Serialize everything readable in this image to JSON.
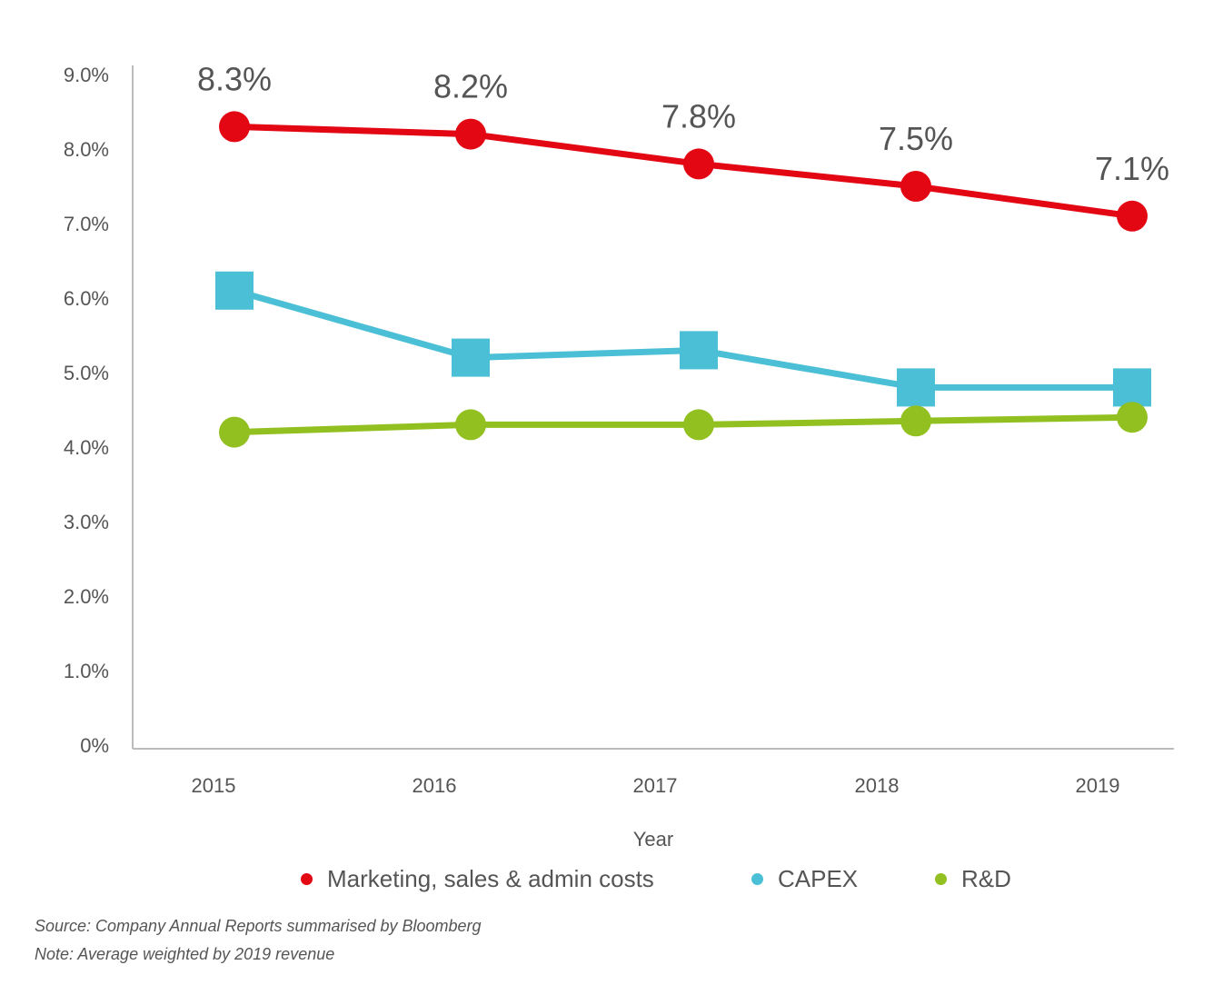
{
  "chart_data": {
    "type": "line",
    "categories": [
      "2015",
      "2016",
      "2017",
      "2018",
      "2019"
    ],
    "xlabel": "Year",
    "ylabel": "",
    "ylim": [
      0,
      9
    ],
    "yticks": [
      "0%",
      "1.0%",
      "2.0%",
      "3.0%",
      "4.0%",
      "5.0%",
      "6.0%",
      "7.0%",
      "8.0%",
      "9.0%"
    ],
    "grid": false,
    "legend_position": "bottom",
    "series": [
      {
        "name": "Marketing, sales & admin costs",
        "color": "#e30613",
        "marker": "circle",
        "values": [
          8.3,
          8.2,
          7.8,
          7.5,
          7.1
        ],
        "data_labels": [
          "8.3%",
          "8.2%",
          "7.8%",
          "7.5%",
          "7.1%"
        ]
      },
      {
        "name": "CAPEX",
        "color": "#4bbfd6",
        "marker": "square",
        "values": [
          6.1,
          5.2,
          5.3,
          4.8,
          4.8
        ]
      },
      {
        "name": "R&D",
        "color": "#92c020",
        "marker": "circle",
        "values": [
          4.2,
          4.3,
          4.3,
          4.35,
          4.4
        ]
      }
    ]
  },
  "footnotes": {
    "source": "Source: Company Annual Reports summarised by Bloomberg",
    "note": "Note: Average weighted by 2019 revenue"
  }
}
